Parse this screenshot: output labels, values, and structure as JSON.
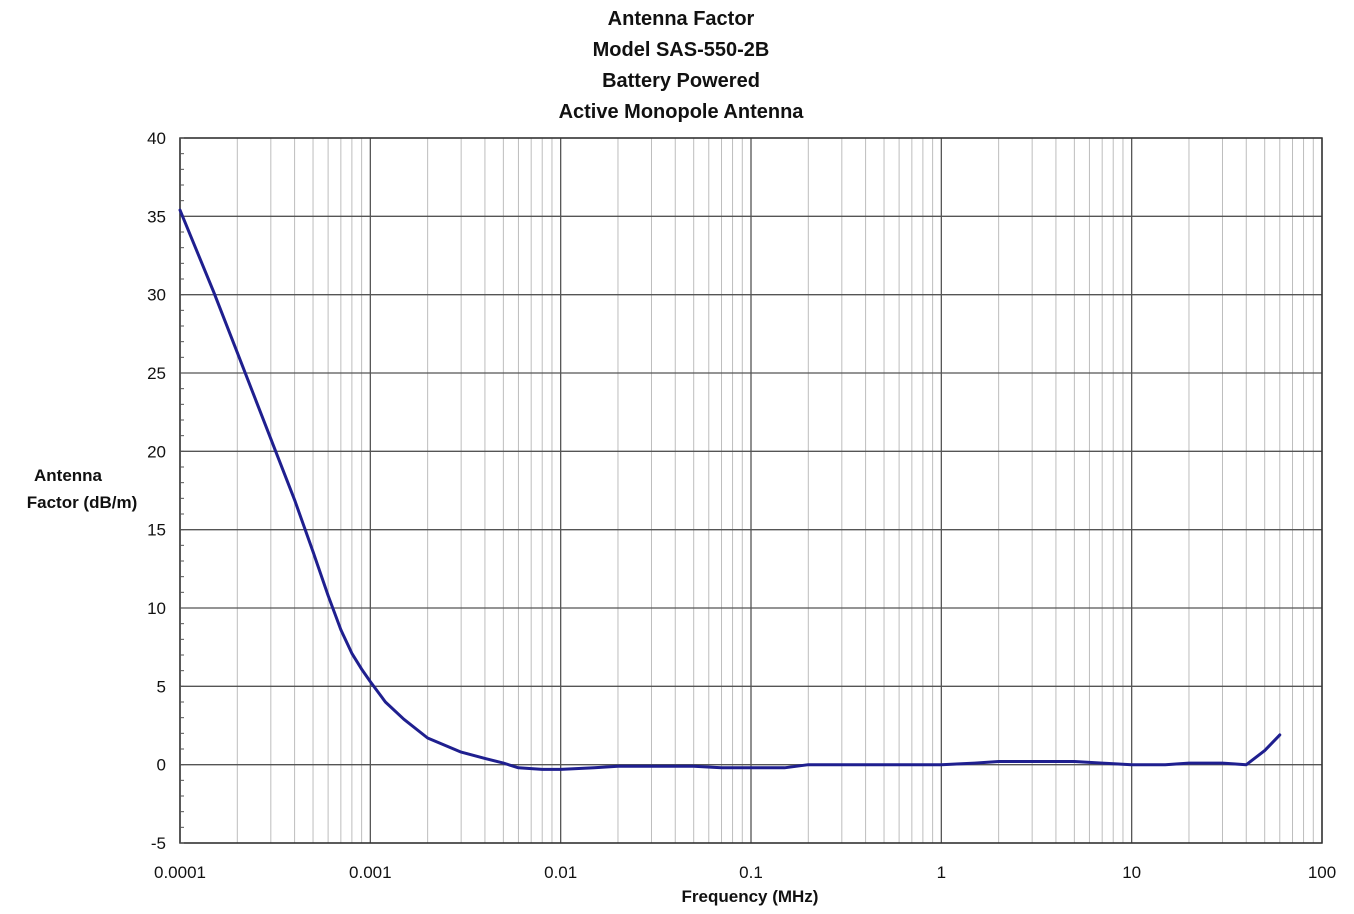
{
  "chart_data": {
    "type": "line",
    "title_lines": [
      "Antenna Factor",
      "Model SAS-550-2B",
      "Battery Powered",
      "Active Monopole Antenna"
    ],
    "xlabel": "Frequency (MHz)",
    "ylabel_lines": [
      "Antenna",
      "Factor (dB/m)"
    ],
    "x_scale": "log",
    "xlim": [
      0.0001,
      100
    ],
    "ylim": [
      -5,
      40
    ],
    "x_ticks": [
      0.0001,
      0.001,
      0.01,
      0.1,
      1,
      10,
      100
    ],
    "x_tick_labels": [
      "0.0001",
      "0.001",
      "0.01",
      "0.1",
      "1",
      "10",
      "100"
    ],
    "y_ticks": [
      -5,
      0,
      5,
      10,
      15,
      20,
      25,
      30,
      35,
      40
    ],
    "y_tick_labels": [
      "-5",
      "0",
      "5",
      "10",
      "15",
      "20",
      "25",
      "30",
      "35",
      "40"
    ],
    "grid": true,
    "line_color": "#1f1f8f",
    "series": [
      {
        "x": [
          0.0001,
          0.00015,
          0.0002,
          0.0003,
          0.0004,
          0.0005,
          0.0006,
          0.0007,
          0.0008,
          0.0009,
          0.001,
          0.0012,
          0.0015,
          0.002,
          0.003,
          0.004,
          0.005,
          0.006,
          0.008,
          0.01,
          0.015,
          0.02,
          0.03,
          0.05,
          0.07,
          0.1,
          0.15,
          0.2,
          0.3,
          0.5,
          0.7,
          1,
          1.5,
          2,
          3,
          5,
          7,
          10,
          15,
          20,
          30,
          40,
          50,
          60
        ],
        "y": [
          35.4,
          30.2,
          26.3,
          20.8,
          16.9,
          13.6,
          10.8,
          8.6,
          7.1,
          6.1,
          5.3,
          4.0,
          2.9,
          1.7,
          0.8,
          0.4,
          0.1,
          -0.2,
          -0.3,
          -0.3,
          -0.2,
          -0.1,
          -0.1,
          -0.1,
          -0.2,
          -0.2,
          -0.2,
          0.0,
          0.0,
          0.0,
          0.0,
          0.0,
          0.1,
          0.2,
          0.2,
          0.2,
          0.1,
          0.0,
          0.0,
          0.1,
          0.1,
          0.0,
          0.9,
          1.9
        ]
      }
    ]
  }
}
